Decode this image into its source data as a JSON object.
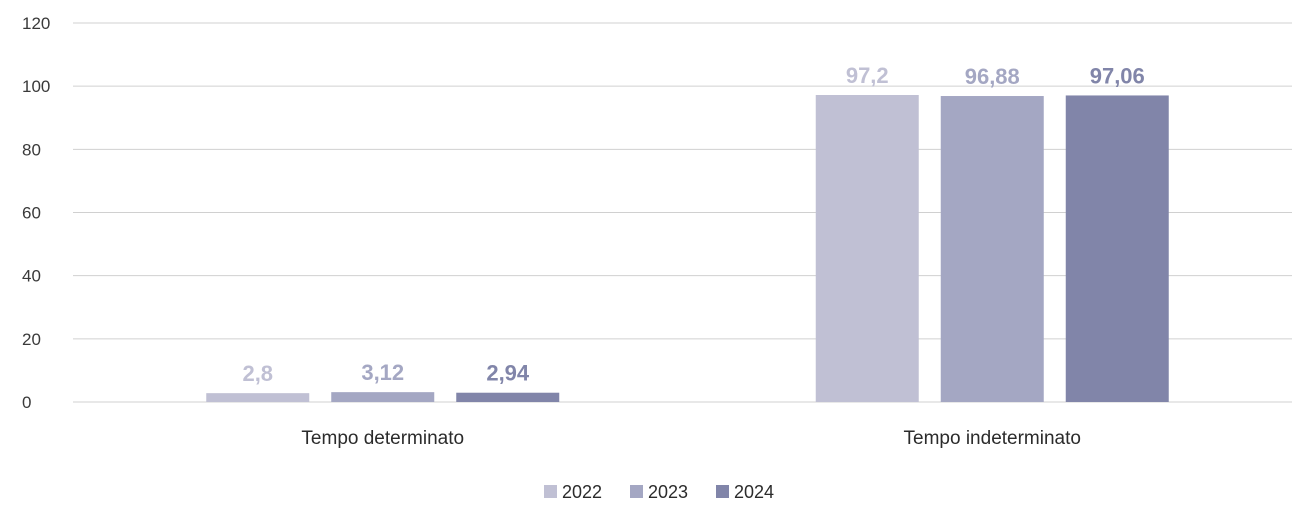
{
  "chart_data": {
    "type": "bar",
    "categories": [
      "Tempo determinato",
      "Tempo indeterminato"
    ],
    "series": [
      {
        "name": "2022",
        "values": [
          2.8,
          97.2
        ],
        "labels": [
          "2,8",
          "97,2"
        ],
        "color": "#c0c0d4"
      },
      {
        "name": "2023",
        "values": [
          3.12,
          96.88
        ],
        "labels": [
          "3,12",
          "96,88"
        ],
        "color": "#a4a7c3"
      },
      {
        "name": "2024",
        "values": [
          2.94,
          97.06
        ],
        "labels": [
          "2,94",
          "97,06"
        ],
        "color": "#8185a9"
      }
    ],
    "title": "",
    "xlabel": "",
    "ylabel": "",
    "ylim": [
      0,
      120
    ],
    "yticks": [
      0,
      20,
      40,
      60,
      80,
      100,
      120
    ],
    "grid": true,
    "legend": "bottom-center"
  }
}
